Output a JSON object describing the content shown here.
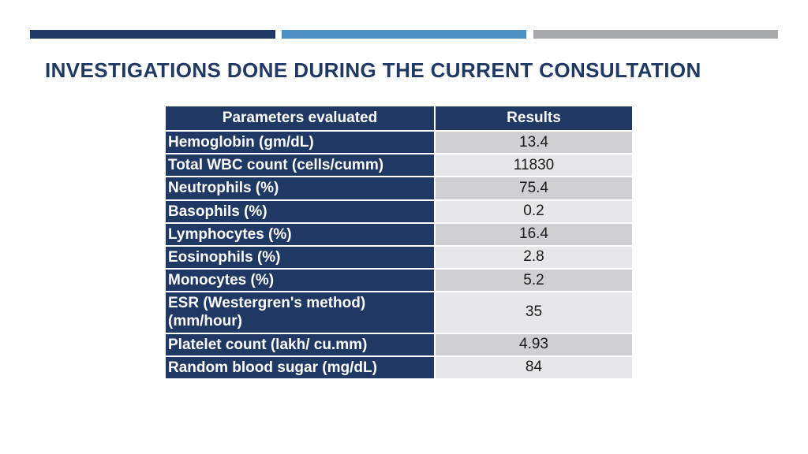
{
  "title": "INVESTIGATIONS DONE DURING THE CURRENT CONSULTATION",
  "decor": {
    "bar1": "accent-bar-navy",
    "bar2": "accent-bar-blue",
    "bar3": "accent-bar-gray"
  },
  "colors": {
    "navy": "#1F3864",
    "accent_blue": "#4A90C2",
    "accent_gray": "#A7AAAD",
    "row_dark": "#D0CFD2",
    "row_light": "#E7E7E9",
    "title_text": "#1F3864",
    "result_text": "#1A1A1A",
    "header_text": "#FFFFFF"
  },
  "table": {
    "headers": [
      "Parameters evaluated",
      "Results"
    ],
    "rows": [
      {
        "parameter": "Hemoglobin (gm/dL)",
        "result": "13.4"
      },
      {
        "parameter": "Total WBC count (cells/cumm)",
        "result": "11830"
      },
      {
        "parameter": "Neutrophils (%)",
        "result": "75.4"
      },
      {
        "parameter": "Basophils (%)",
        "result": "0.2"
      },
      {
        "parameter": "Lymphocytes (%)",
        "result": "16.4"
      },
      {
        "parameter": "Eosinophils (%)",
        "result": "2.8"
      },
      {
        "parameter": "Monocytes (%)",
        "result": "5.2"
      },
      {
        "parameter": "ESR (Westergren's method)\n(mm/hour)",
        "result": "35"
      },
      {
        "parameter": "Platelet count (lakh/ cu.mm)",
        "result": "4.93"
      },
      {
        "parameter": "Random blood sugar (mg/dL)",
        "result": "84"
      }
    ]
  }
}
